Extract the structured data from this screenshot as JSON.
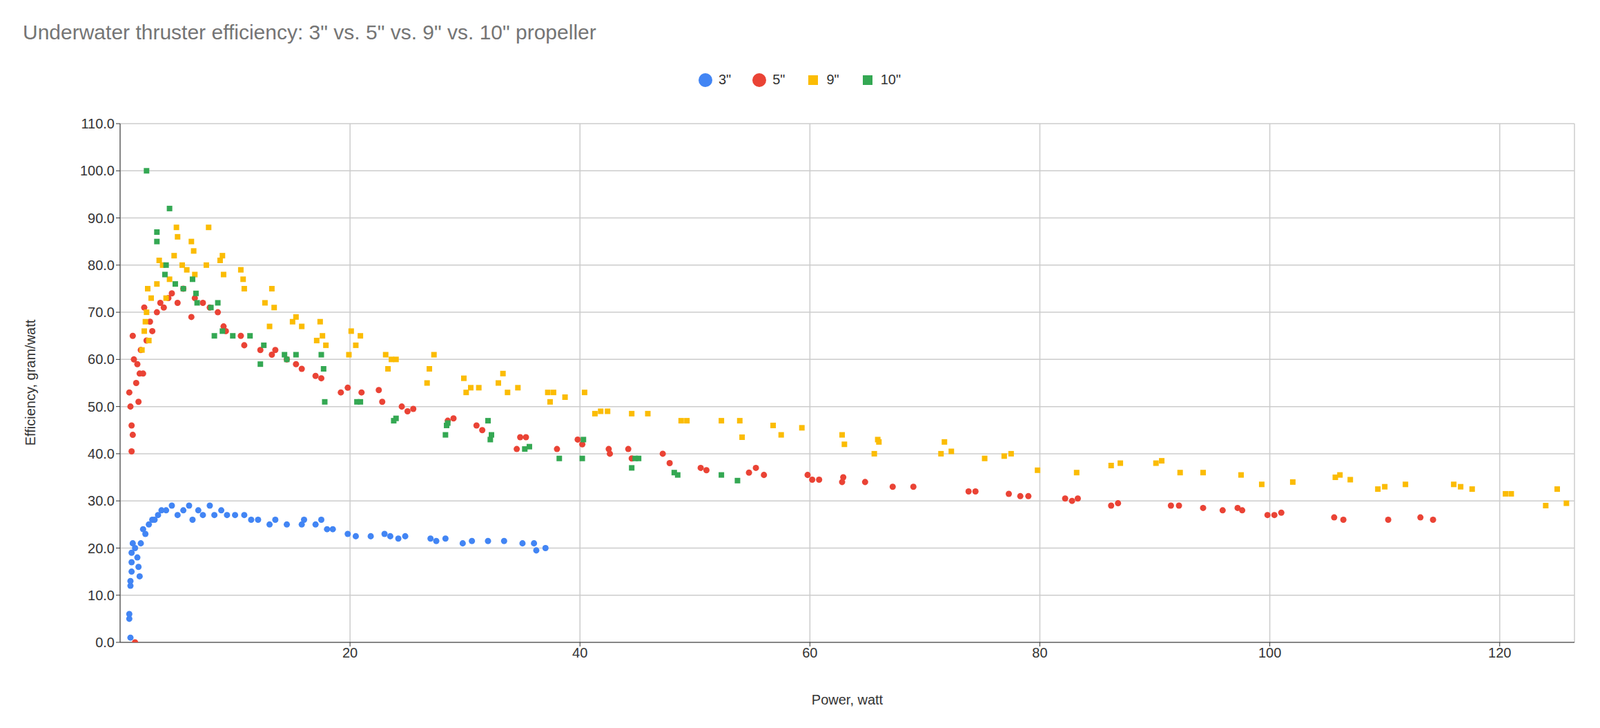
{
  "chart_data": {
    "type": "scatter",
    "title": "Underwater thruster efficiency: 3\" vs. 5\" vs. 9\" vs. 10\" propeller",
    "x_label": "Power, watt",
    "y_label": "Efficiency, gram/watt",
    "legend": "top",
    "grid": true,
    "xlim": [
      0,
      126.5
    ],
    "xticks": [
      20,
      40,
      60,
      80,
      100,
      120
    ],
    "ylim": [
      0,
      110
    ],
    "yticks": [
      {
        "value": 0,
        "label": "0.0"
      },
      {
        "value": 10,
        "label": "10.0"
      },
      {
        "value": 20,
        "label": "20.0"
      },
      {
        "value": 30,
        "label": "30.0"
      },
      {
        "value": 40,
        "label": "40.0"
      },
      {
        "value": 50,
        "label": "50.0"
      },
      {
        "value": 60,
        "label": "60.0"
      },
      {
        "value": 70,
        "label": "70.0"
      },
      {
        "value": 80,
        "label": "80.0"
      },
      {
        "value": 90,
        "label": "90.0"
      },
      {
        "value": 100,
        "label": "100.0"
      },
      {
        "value": 110,
        "label": "110.0"
      }
    ],
    "series": [
      {
        "name": "3\"",
        "color": "#4285f4",
        "marker": "circle",
        "x": [
          0.9,
          0.8,
          0.8,
          0.9,
          0.9,
          1,
          1,
          1,
          1.1,
          1.3,
          1.5,
          1.6,
          1.7,
          1.8,
          2,
          2.2,
          2.5,
          2.8,
          3,
          3.3,
          3.6,
          4,
          4.5,
          5,
          5.5,
          6,
          6.3,
          6.8,
          7.2,
          7.8,
          8.2,
          8.8,
          9.3,
          10,
          10.8,
          11.4,
          12,
          13,
          13.5,
          14.5,
          15.8,
          16,
          17,
          17.5,
          18,
          18.5,
          19.8,
          20.5,
          21.8,
          23,
          23.5,
          24.2,
          24.8,
          27,
          27.5,
          28.3,
          29.8,
          30.6,
          32,
          33.4,
          35,
          36,
          36.2,
          37
        ],
        "values": [
          1,
          5,
          6,
          12,
          13,
          15,
          17,
          19,
          21,
          20,
          18,
          16,
          14,
          21,
          24,
          23,
          25,
          26,
          26,
          27,
          28,
          28,
          29,
          27,
          28,
          29,
          26,
          28,
          27,
          29,
          27,
          28,
          27,
          27,
          27,
          26,
          26,
          25,
          26,
          25,
          25,
          26,
          25,
          26,
          24,
          24,
          23,
          22.5,
          22.5,
          23,
          22.5,
          22,
          22.5,
          22,
          21.5,
          22,
          21,
          21.5,
          21.5,
          21.5,
          21,
          21,
          19.5,
          20
        ]
      },
      {
        "name": "5\"",
        "color": "#ea4335",
        "marker": "circle",
        "x": [
          1.3,
          0.8,
          0.9,
          1,
          1.1,
          1,
          1.2,
          1.1,
          1.4,
          1.5,
          1.6,
          1.7,
          1.8,
          2,
          2.1,
          2.3,
          2.6,
          2.8,
          3.2,
          3.5,
          3.8,
          4.2,
          4.5,
          5,
          5.5,
          6.2,
          6.5,
          7.2,
          7.8,
          8.5,
          9,
          9.2,
          10.5,
          10.8,
          12.2,
          13.2,
          13.5,
          14.5,
          15.3,
          15.8,
          17,
          17.5,
          19.2,
          19.8,
          21,
          22.5,
          22.8,
          24.5,
          25,
          25.5,
          28.5,
          29,
          31,
          31.5,
          34.5,
          34.8,
          35.3,
          38,
          39.8,
          40.2,
          42.5,
          42.6,
          44.2,
          44.5,
          47.2,
          47.8,
          50.5,
          51,
          54.7,
          55.3,
          56,
          59.8,
          60.2,
          60.8,
          62.8,
          62.9,
          64.8,
          67.2,
          69,
          73.8,
          74.4,
          77.3,
          78.3,
          79,
          82.2,
          82.8,
          83.3,
          86.2,
          86.8,
          91.4,
          92.1,
          94.2,
          95.9,
          97.2,
          97.6,
          99.8,
          100.4,
          101,
          105.6,
          106.4,
          110.3,
          113.1,
          114.2
        ],
        "values": [
          0,
          53,
          50,
          46,
          44,
          40.5,
          60,
          65,
          55,
          59,
          51,
          57,
          62,
          57,
          71,
          64,
          68,
          66,
          70,
          72,
          71,
          73,
          74,
          72,
          75,
          69,
          73,
          72,
          71,
          70,
          67,
          66,
          65,
          63,
          62,
          61,
          62,
          60,
          59,
          58,
          56.5,
          56,
          53,
          54,
          53,
          53.5,
          51,
          50,
          49,
          49.5,
          47,
          47.5,
          46,
          45,
          41,
          43.5,
          43.5,
          41,
          43,
          42,
          41,
          40,
          41,
          39,
          40,
          38,
          37,
          36.5,
          36,
          37,
          35.5,
          35.5,
          34.5,
          34.5,
          34,
          35,
          34,
          33,
          33,
          32,
          32,
          31.5,
          31,
          31,
          30.5,
          30,
          30.5,
          29,
          29.5,
          29,
          29,
          28.5,
          28,
          28.5,
          28,
          27,
          27,
          27.5,
          26.5,
          26,
          26,
          26.5,
          26
        ]
      },
      {
        "name": "9\"",
        "color": "#fbbc04",
        "marker": "square",
        "x": [
          1.9,
          2.1,
          2.2,
          2.3,
          2.4,
          2.5,
          2.7,
          3.2,
          3.4,
          3.7,
          4,
          4.3,
          4.7,
          4.9,
          5,
          5.4,
          5.8,
          6.2,
          6.4,
          6.5,
          7.5,
          7.7,
          8.7,
          8.9,
          9,
          10.5,
          10.7,
          10.8,
          12.6,
          13,
          13.2,
          13.4,
          15,
          15.3,
          15.8,
          17.1,
          17.4,
          17.6,
          17.9,
          19.9,
          20.1,
          20.5,
          20.9,
          23.1,
          23.3,
          23.6,
          24,
          26.7,
          26.9,
          27.3,
          29.9,
          30.1,
          30.5,
          31.2,
          32.9,
          33.3,
          33.7,
          34.6,
          37.2,
          37.4,
          37.7,
          38.7,
          40.4,
          41.3,
          41.8,
          42.4,
          44.5,
          45.9,
          48.8,
          49.3,
          52.3,
          53.9,
          54.1,
          56.8,
          57.5,
          59.3,
          62.8,
          63,
          65.6,
          65.9,
          66,
          71.4,
          71.7,
          72.3,
          75.2,
          76.9,
          77.5,
          79.8,
          83.2,
          86.2,
          87,
          90.1,
          90.6,
          92.2,
          94.2,
          97.5,
          99.3,
          102,
          105.7,
          106.1,
          107,
          109.4,
          110,
          111.8,
          116,
          116.6,
          117.6,
          120.5,
          121,
          124,
          125,
          125.8
        ],
        "values": [
          62,
          66,
          68,
          70,
          75,
          64,
          73,
          76,
          81,
          80,
          73,
          77,
          82,
          88,
          86,
          80,
          79,
          85,
          83,
          78,
          80,
          88,
          81,
          82,
          78,
          79,
          77,
          75,
          72,
          67,
          75,
          71,
          68,
          69,
          67,
          64,
          68,
          65,
          63,
          61,
          66,
          63,
          65,
          61,
          58,
          60,
          60,
          55,
          58,
          61,
          56,
          53,
          54,
          54,
          55,
          57,
          53,
          54,
          53,
          51,
          53,
          52,
          53,
          48.5,
          49,
          49,
          48.5,
          48.5,
          47,
          47,
          47,
          47,
          43.5,
          46,
          44,
          45.5,
          44,
          42,
          40,
          43,
          42.5,
          40,
          42.5,
          40.5,
          39,
          39.5,
          40,
          36.5,
          36,
          37.5,
          38,
          38,
          38.5,
          36,
          36,
          35.5,
          33.5,
          34,
          35,
          35.5,
          34.5,
          32.5,
          33,
          33.5,
          33.5,
          33,
          32.5,
          31.5,
          31.5,
          29,
          32.5,
          29.5
        ]
      },
      {
        "name": "10\"",
        "color": "#34a853",
        "marker": "square",
        "x": [
          2.3,
          3.2,
          3.2,
          4,
          3.9,
          4.3,
          4.8,
          5.5,
          6.3,
          6.7,
          6.6,
          7.9,
          8.2,
          8.5,
          8.9,
          9.8,
          11.3,
          12.2,
          12.5,
          14.3,
          14.5,
          15.3,
          17.5,
          17.7,
          17.8,
          20.6,
          20.9,
          23.8,
          24,
          28.3,
          28.4,
          28.5,
          32,
          32.2,
          32.3,
          35.2,
          35.6,
          38.2,
          40.2,
          40.3,
          44.5,
          44.8,
          45.1,
          48.2,
          48.5,
          52.3,
          53.7
        ],
        "values": [
          100,
          87,
          85,
          80,
          78,
          92,
          76,
          75,
          77,
          72,
          74,
          71,
          65,
          72,
          66,
          65,
          65,
          59,
          63,
          61,
          60,
          61,
          61,
          58,
          51,
          51,
          51,
          47,
          47.5,
          44,
          46,
          46.5,
          47,
          43,
          44,
          41,
          41.5,
          39,
          39,
          43,
          37,
          39,
          39,
          36,
          35.5,
          35.5,
          34.3
        ]
      }
    ]
  }
}
